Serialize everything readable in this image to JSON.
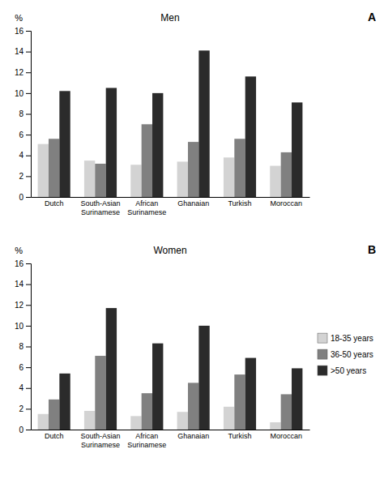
{
  "chart_data": [
    {
      "type": "bar",
      "title": "Men",
      "categories": [
        "Dutch",
        "South-Asian\nSurinamese",
        "African\nSurinamese",
        "Ghanaian",
        "Turkish",
        "Moroccan"
      ],
      "series": [
        {
          "name": "18-35 years",
          "color": "#d3d3d3",
          "values": [
            5.1,
            3.5,
            3.1,
            3.4,
            3.8,
            3.0
          ]
        },
        {
          "name": "36-50 years",
          "color": "#808080",
          "values": [
            5.6,
            3.2,
            7.0,
            5.3,
            5.6,
            4.3
          ]
        },
        {
          "name": ">50 years",
          "color": "#2b2b2b",
          "values": [
            10.2,
            10.5,
            10.0,
            14.1,
            11.6,
            9.1
          ]
        }
      ],
      "ylabel": "%",
      "ylim": [
        0,
        16
      ],
      "yticks": [
        0,
        2,
        4,
        6,
        8,
        10,
        12,
        14,
        16
      ],
      "annotations": [
        "A"
      ]
    },
    {
      "type": "bar",
      "title": "Women",
      "categories": [
        "Dutch",
        "South-Asian\nSurinamese",
        "African\nSurinamese",
        "Ghanaian",
        "Turkish",
        "Moroccan"
      ],
      "series": [
        {
          "name": "18-35 years",
          "color": "#d3d3d3",
          "values": [
            1.5,
            1.8,
            1.3,
            1.7,
            2.2,
            0.7
          ]
        },
        {
          "name": "36-50 years",
          "color": "#808080",
          "values": [
            2.9,
            7.1,
            3.5,
            4.5,
            5.3,
            3.4
          ]
        },
        {
          "name": ">50 years",
          "color": "#2b2b2b",
          "values": [
            5.4,
            11.7,
            8.3,
            10.0,
            6.9,
            5.9
          ]
        }
      ],
      "ylabel": "%",
      "ylim": [
        0,
        16
      ],
      "yticks": [
        0,
        2,
        4,
        6,
        8,
        10,
        12,
        14,
        16
      ],
      "annotations": [
        "B"
      ],
      "legend": "right"
    }
  ]
}
